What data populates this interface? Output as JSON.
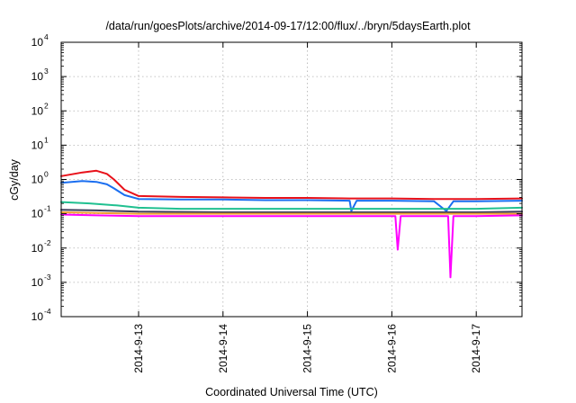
{
  "chart_data": {
    "type": "line",
    "title": "/data/run/goesPlots/archive/2014-09-17/12:00/flux/../bryn/5daysEarth.plot",
    "xlabel": "Coordinated Universal Time (UTC)",
    "ylabel": "cGy/day",
    "yscale": "log",
    "ylim": [
      0.0001,
      10000
    ],
    "xlim": [
      "2014-09-12 02:00",
      "2014-09-17 13:00"
    ],
    "y_ticks": [
      {
        "value": 0.0001,
        "base": "10",
        "exp": "-4"
      },
      {
        "value": 0.001,
        "base": "10",
        "exp": "-3"
      },
      {
        "value": 0.01,
        "base": "10",
        "exp": "-2"
      },
      {
        "value": 0.1,
        "base": "10",
        "exp": "-1"
      },
      {
        "value": 1,
        "base": "10",
        "exp": "0"
      },
      {
        "value": 10,
        "base": "10",
        "exp": "1"
      },
      {
        "value": 100,
        "base": "10",
        "exp": "2"
      },
      {
        "value": 1000,
        "base": "10",
        "exp": "3"
      },
      {
        "value": 10000,
        "base": "10",
        "exp": "4"
      }
    ],
    "x_ticks": [
      {
        "value": "2014-09-13 00:00",
        "label": "2014-9-13"
      },
      {
        "value": "2014-09-14 00:00",
        "label": "2014-9-14"
      },
      {
        "value": "2014-09-15 00:00",
        "label": "2014-9-15"
      },
      {
        "value": "2014-09-16 00:00",
        "label": "2014-9-16"
      },
      {
        "value": "2014-09-17 00:00",
        "label": "2014-9-17"
      }
    ],
    "grid": true,
    "series": [
      {
        "color": "#e8111a",
        "x": [
          "2014-09-12 02:00",
          "2014-09-12 08:00",
          "2014-09-12 12:00",
          "2014-09-12 15:00",
          "2014-09-12 17:00",
          "2014-09-12 20:00",
          "2014-09-13 00:00",
          "2014-09-13 12:00",
          "2014-09-14 00:00",
          "2014-09-14 12:00",
          "2014-09-15 00:00",
          "2014-09-15 12:00",
          "2014-09-16 00:00",
          "2014-09-16 12:00",
          "2014-09-17 00:00",
          "2014-09-17 13:00"
        ],
        "values": [
          1.25,
          1.6,
          1.8,
          1.45,
          1.0,
          0.5,
          0.33,
          0.31,
          0.3,
          0.29,
          0.29,
          0.28,
          0.28,
          0.27,
          0.27,
          0.28
        ]
      },
      {
        "color": "#1a6ef0",
        "x": [
          "2014-09-12 02:00",
          "2014-09-12 08:00",
          "2014-09-12 12:00",
          "2014-09-12 15:00",
          "2014-09-12 17:00",
          "2014-09-12 20:00",
          "2014-09-13 00:00",
          "2014-09-13 12:00",
          "2014-09-14 00:00",
          "2014-09-14 12:00",
          "2014-09-15 00:00",
          "2014-09-15 12:00",
          "2014-09-15 12:30",
          "2014-09-15 14:00",
          "2014-09-16 00:00",
          "2014-09-16 12:00",
          "2014-09-16 15:30",
          "2014-09-16 17:30",
          "2014-09-17 00:00",
          "2014-09-17 13:00"
        ],
        "values": [
          0.8,
          0.9,
          0.85,
          0.72,
          0.55,
          0.35,
          0.27,
          0.26,
          0.26,
          0.25,
          0.25,
          0.24,
          0.12,
          0.24,
          0.24,
          0.23,
          0.12,
          0.23,
          0.23,
          0.24
        ]
      },
      {
        "color": "#20c090",
        "x": [
          "2014-09-12 02:00",
          "2014-09-12 10:00",
          "2014-09-12 18:00",
          "2014-09-13 00:00",
          "2014-09-13 12:00",
          "2014-09-14 00:00",
          "2014-09-15 00:00",
          "2014-09-16 00:00",
          "2014-09-17 00:00",
          "2014-09-17 13:00"
        ],
        "values": [
          0.22,
          0.2,
          0.175,
          0.15,
          0.14,
          0.14,
          0.14,
          0.14,
          0.14,
          0.15
        ]
      },
      {
        "color": "#3c3c5a",
        "x": [
          "2014-09-12 02:00",
          "2014-09-12 12:00",
          "2014-09-13 00:00",
          "2014-09-14 00:00",
          "2014-09-15 00:00",
          "2014-09-16 00:00",
          "2014-09-17 00:00",
          "2014-09-17 13:00"
        ],
        "values": [
          0.13,
          0.125,
          0.115,
          0.11,
          0.11,
          0.11,
          0.11,
          0.115
        ]
      },
      {
        "color": "#f0a030",
        "x": [
          "2014-09-12 02:00",
          "2014-09-12 12:00",
          "2014-09-13 00:00",
          "2014-09-14 00:00",
          "2014-09-15 00:00",
          "2014-09-16 00:00",
          "2014-09-17 00:00",
          "2014-09-17 13:00"
        ],
        "values": [
          0.11,
          0.105,
          0.1,
          0.1,
          0.1,
          0.1,
          0.1,
          0.1
        ]
      },
      {
        "color": "#ff00ff",
        "x": [
          "2014-09-12 02:00",
          "2014-09-12 12:00",
          "2014-09-13 00:00",
          "2014-09-14 00:00",
          "2014-09-15 00:00",
          "2014-09-16 00:00",
          "2014-09-16 01:00",
          "2014-09-16 01:40",
          "2014-09-16 02:30",
          "2014-09-16 12:00",
          "2014-09-16 16:00",
          "2014-09-16 16:40",
          "2014-09-16 17:30",
          "2014-09-17 00:00",
          "2014-09-17 13:00"
        ],
        "values": [
          0.095,
          0.09,
          0.085,
          0.085,
          0.085,
          0.085,
          0.085,
          0.009,
          0.085,
          0.085,
          0.085,
          0.0014,
          0.085,
          0.085,
          0.09
        ]
      }
    ]
  }
}
